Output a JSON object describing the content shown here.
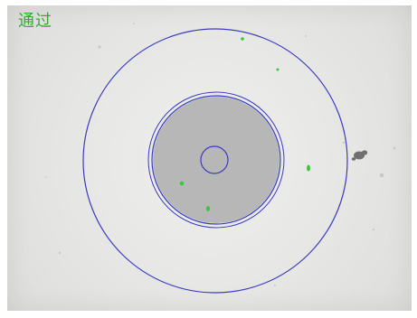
{
  "status": {
    "text": "通过",
    "color": "#3aa63a"
  },
  "overlay": {
    "ring_color": "#3b3bc0",
    "defect_color": "#39c839",
    "core_fill": "#b7b7b7"
  },
  "icons": {
    "outer_ring": "cladding-ring-icon",
    "inner_ring": "core-boundary-icon",
    "center_ring": "core-center-icon",
    "defect": "defect-spot-icon"
  }
}
